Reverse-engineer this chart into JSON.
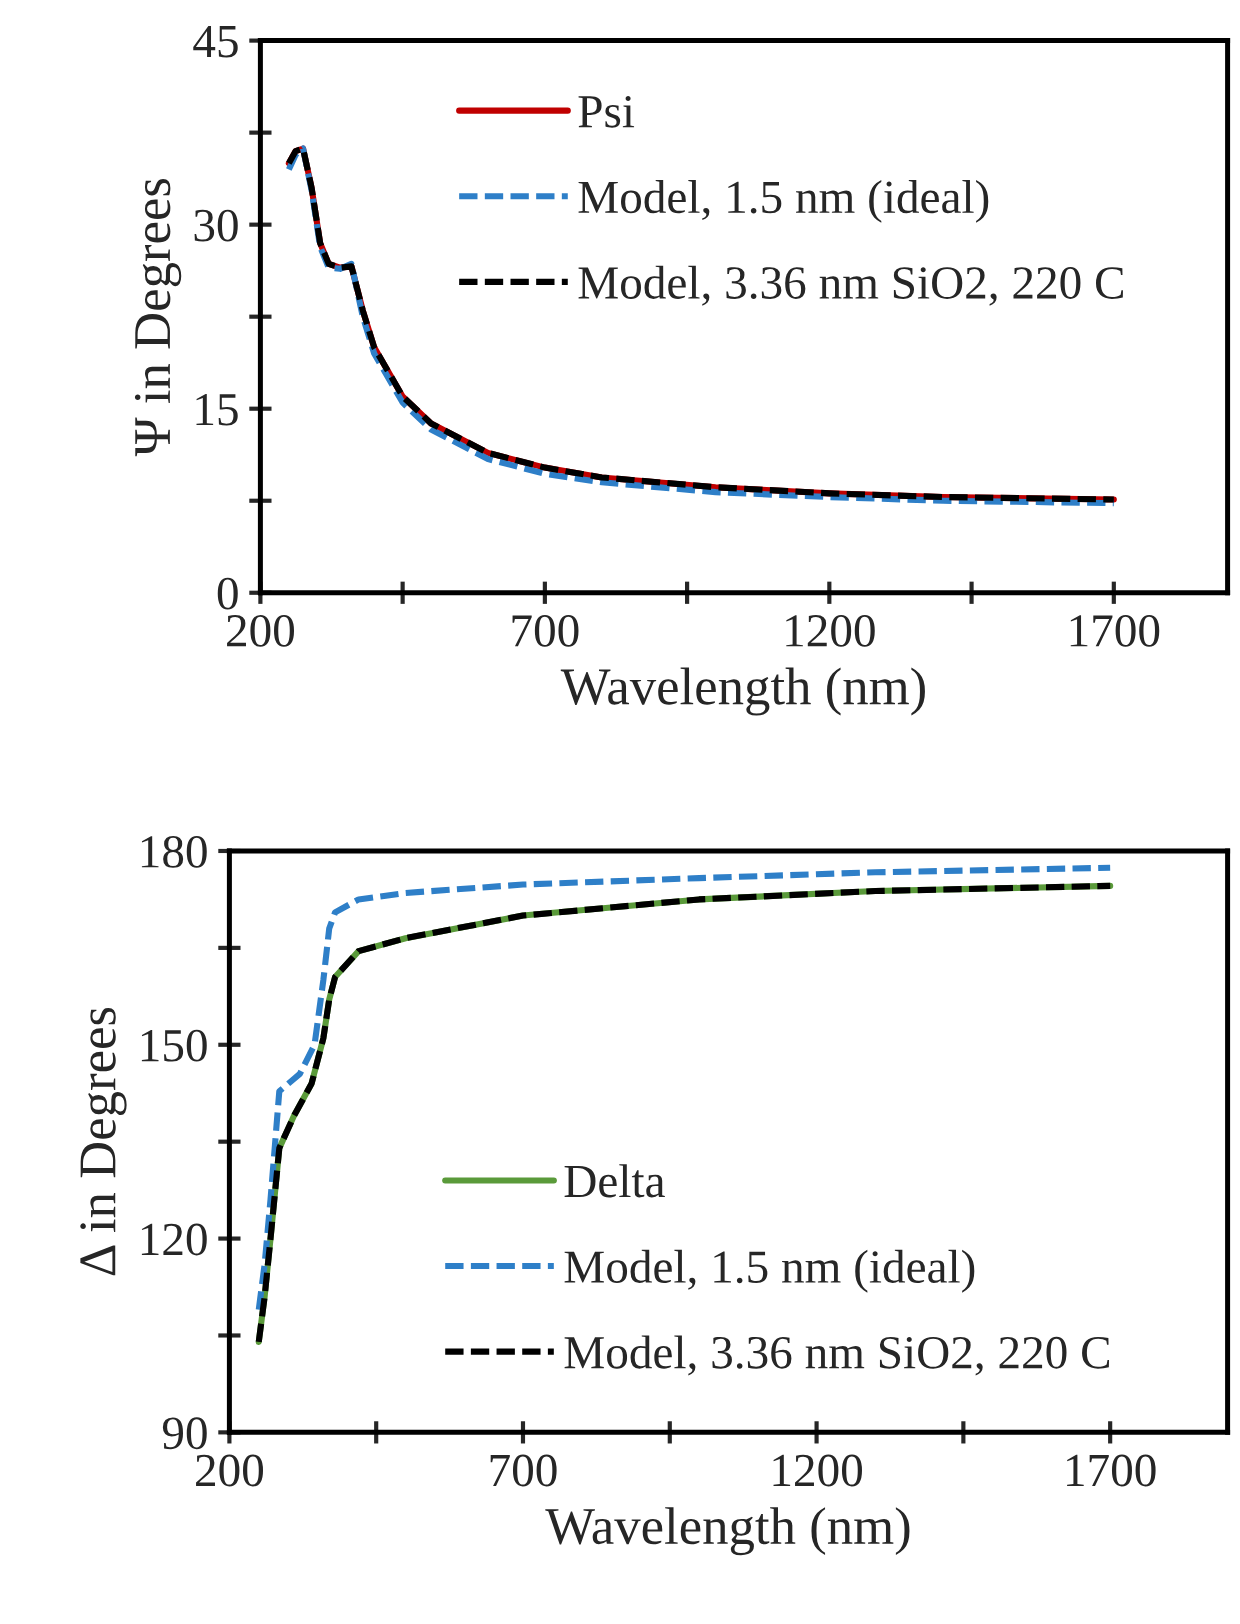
{
  "chart_data": [
    {
      "type": "line",
      "xlabel": "Wavelength (nm)",
      "ylabel": "Ψ in Degrees",
      "xlim": [
        200,
        1900
      ],
      "ylim": [
        0,
        45
      ],
      "xticks": [
        200,
        {
          "value": 450,
          "label": null
        },
        700,
        {
          "value": 950,
          "label": null
        },
        1200,
        {
          "value": 1450,
          "label": null
        },
        1700
      ],
      "yticks": [
        0,
        {
          "value": 7.5,
          "label": null
        },
        15,
        {
          "value": 22.5,
          "label": null
        },
        30,
        {
          "value": 37.5,
          "label": null
        },
        45
      ],
      "legend": "top",
      "grid": false,
      "series": [
        {
          "name": "Psi",
          "color": "#c00000",
          "line_style": "solid",
          "x": [
            250,
            262,
            275,
            290,
            305,
            320,
            340,
            360,
            380,
            400,
            450,
            500,
            600,
            700,
            800,
            1000,
            1200,
            1400,
            1700
          ],
          "values": [
            35,
            36,
            36.2,
            33,
            28.5,
            26.8,
            26.5,
            26.6,
            23,
            20,
            16,
            13.8,
            11.4,
            10.2,
            9.4,
            8.6,
            8.1,
            7.8,
            7.6
          ]
        },
        {
          "name": "Model, 1.5 nm (ideal)",
          "color": "#2e7fc8",
          "line_style": "dashed",
          "x": [
            250,
            262,
            275,
            290,
            305,
            320,
            340,
            360,
            380,
            400,
            450,
            500,
            600,
            700,
            800,
            1000,
            1200,
            1400,
            1700
          ],
          "values": [
            34.5,
            35.7,
            36.2,
            32.8,
            28.2,
            26.5,
            26.4,
            26.8,
            22.5,
            19.5,
            15.5,
            13.3,
            10.9,
            9.7,
            9,
            8.2,
            7.8,
            7.5,
            7.3
          ]
        },
        {
          "name": "Model, 3.36 nm SiO2, 220 C",
          "color": "#000000",
          "line_style": "dashed",
          "x": [
            250,
            262,
            275,
            290,
            305,
            320,
            340,
            360,
            380,
            400,
            450,
            500,
            600,
            700,
            800,
            1000,
            1200,
            1400,
            1700
          ],
          "values": [
            35,
            36,
            36.2,
            33,
            28.5,
            26.8,
            26.5,
            26.6,
            23,
            20,
            16,
            13.8,
            11.4,
            10.2,
            9.4,
            8.6,
            8.1,
            7.8,
            7.6
          ]
        }
      ]
    },
    {
      "type": "line",
      "xlabel": "Wavelength (nm)",
      "ylabel": "Δ in Degrees",
      "xlim": [
        200,
        1900
      ],
      "ylim": [
        90,
        180
      ],
      "xticks": [
        200,
        {
          "value": 450,
          "label": null
        },
        700,
        {
          "value": 950,
          "label": null
        },
        1200,
        {
          "value": 1450,
          "label": null
        },
        1700
      ],
      "yticks": [
        90,
        {
          "value": 105,
          "label": null
        },
        120,
        {
          "value": 135,
          "label": null
        },
        150,
        {
          "value": 165,
          "label": null
        },
        180
      ],
      "legend": "bottom",
      "grid": false,
      "series": [
        {
          "name": "Delta",
          "color": "#5a9a3a",
          "line_style": "solid",
          "x": [
            250,
            260,
            270,
            285,
            310,
            340,
            360,
            370,
            380,
            420,
            500,
            700,
            1000,
            1300,
            1700
          ],
          "values": [
            104,
            111,
            120,
            134,
            139,
            144,
            151,
            157,
            160.5,
            164.5,
            166.5,
            170,
            172.5,
            173.8,
            174.6
          ]
        },
        {
          "name": "Model, 1.5 nm (ideal)",
          "color": "#2e7fc8",
          "line_style": "dashed",
          "x": [
            250,
            260,
            270,
            285,
            320,
            345,
            360,
            370,
            380,
            420,
            500,
            700,
            1000,
            1300,
            1700
          ],
          "values": [
            109,
            116,
            126,
            142.8,
            145.5,
            150,
            160,
            168,
            170.5,
            172.5,
            173.5,
            174.8,
            175.8,
            176.7,
            177.4
          ]
        },
        {
          "name": "Model, 3.36 nm SiO2, 220 C",
          "color": "#000000",
          "line_style": "dashed",
          "x": [
            250,
            260,
            270,
            285,
            310,
            340,
            360,
            370,
            380,
            420,
            500,
            700,
            1000,
            1300,
            1700
          ],
          "values": [
            104,
            111,
            120,
            134,
            139,
            144,
            151,
            157,
            160.5,
            164.5,
            166.5,
            170,
            172.5,
            173.8,
            174.6
          ]
        }
      ]
    }
  ]
}
